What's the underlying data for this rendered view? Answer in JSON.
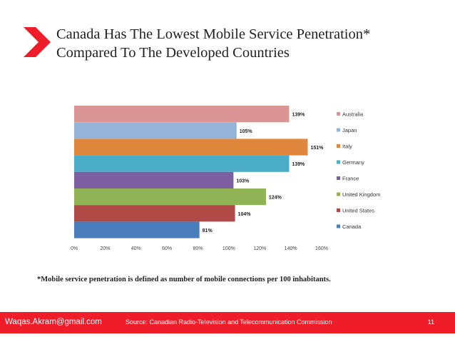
{
  "title": {
    "line1": "Canada Has The Lowest Mobile Service Penetration*",
    "line2": "Compared To The Developed Countries"
  },
  "footnote": "*Mobile service penetration is defined as number of mobile connections per 100 inhabitants.",
  "footer": {
    "email": "Waqas.Akram@gmail.com",
    "source": "Source: Canadian Radio-Television and Telecommunication Commission",
    "page_number": "11"
  },
  "colors": {
    "accent": "#ee1d29",
    "text": "#222222"
  },
  "icons": {
    "title_marker": "red-chevron-icon"
  },
  "chart_data": {
    "type": "bar",
    "orientation": "horizontal",
    "categories": [
      "Australia",
      "Japan",
      "Italy",
      "Germany",
      "France",
      "United Kingdom",
      "United States",
      "Canada"
    ],
    "values": [
      139,
      105,
      151,
      139,
      103,
      124,
      104,
      81
    ],
    "data_labels": [
      "139%",
      "105%",
      "151%",
      "139%",
      "103%",
      "124%",
      "104%",
      "81%"
    ],
    "colors": [
      "#d99694",
      "#95b3d7",
      "#e0873e",
      "#4aacc6",
      "#7b5fa0",
      "#8fb355",
      "#b04a47",
      "#4a7ebb"
    ],
    "xlim": [
      0,
      160
    ],
    "xticks": [
      0,
      20,
      40,
      60,
      80,
      100,
      120,
      140,
      160
    ],
    "xtick_labels": [
      "0%",
      "20%",
      "40%",
      "60%",
      "80%",
      "100%",
      "120%",
      "140%",
      "160%"
    ],
    "legend_position": "right",
    "grid": false,
    "title": "",
    "xlabel": "",
    "ylabel": ""
  }
}
